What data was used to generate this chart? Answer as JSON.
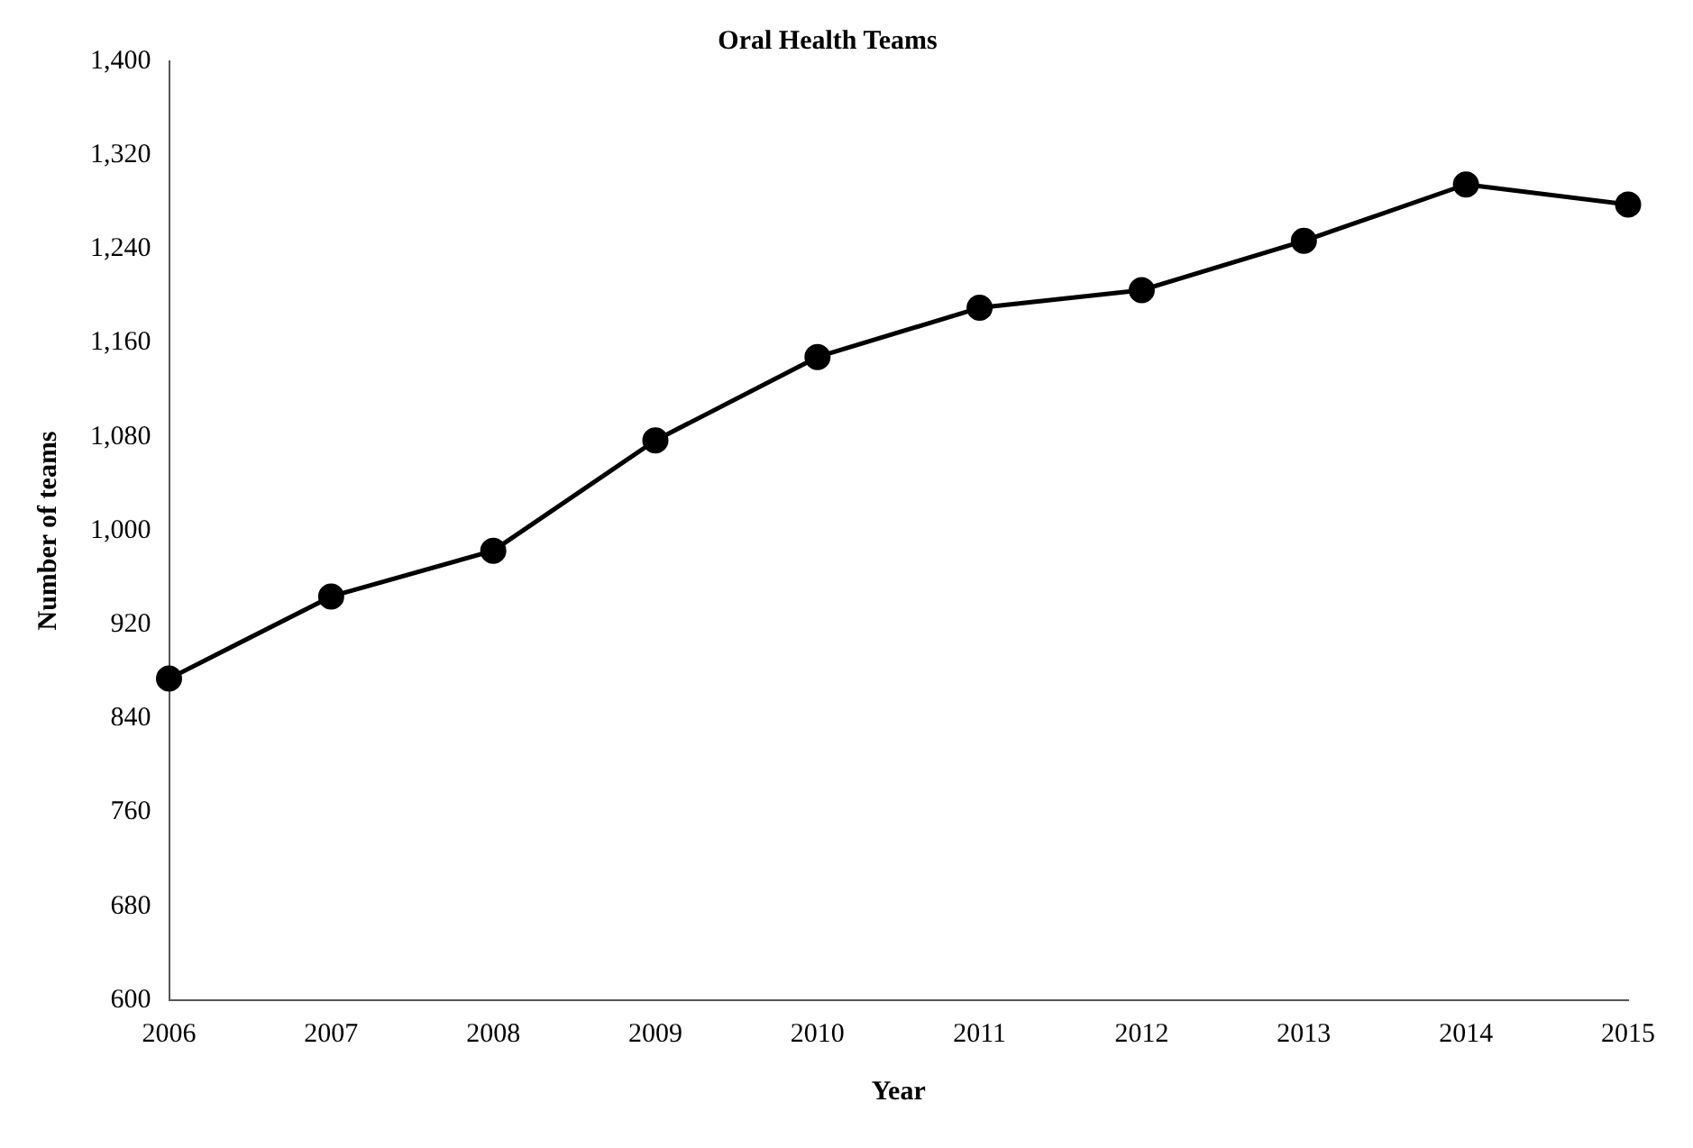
{
  "chart_data": {
    "type": "line",
    "title": "Oral Health Teams",
    "xlabel": "Year",
    "ylabel": "Number of teams",
    "categories": [
      "2006",
      "2007",
      "2008",
      "2009",
      "2010",
      "2011",
      "2012",
      "2013",
      "2014",
      "2015"
    ],
    "series": [
      {
        "color": "#000000",
        "values": [
          874,
          944,
          983,
          1077,
          1148,
          1190,
          1205,
          1247,
          1295,
          1278
        ]
      }
    ],
    "ylim": [
      600,
      1400
    ],
    "yticks": [
      {
        "value": 600,
        "label": "600"
      },
      {
        "value": 680,
        "label": "680"
      },
      {
        "value": 760,
        "label": "760"
      },
      {
        "value": 840,
        "label": "840"
      },
      {
        "value": 920,
        "label": "920"
      },
      {
        "value": 1000,
        "label": "1,000"
      },
      {
        "value": 1080,
        "label": "1,080"
      },
      {
        "value": 1160,
        "label": "1,160"
      },
      {
        "value": 1240,
        "label": "1,240"
      },
      {
        "value": 1320,
        "label": "1,320"
      },
      {
        "value": 1400,
        "label": "1,400"
      }
    ],
    "grid": false,
    "legend": false,
    "marker": "circle",
    "line_style": "solid"
  }
}
